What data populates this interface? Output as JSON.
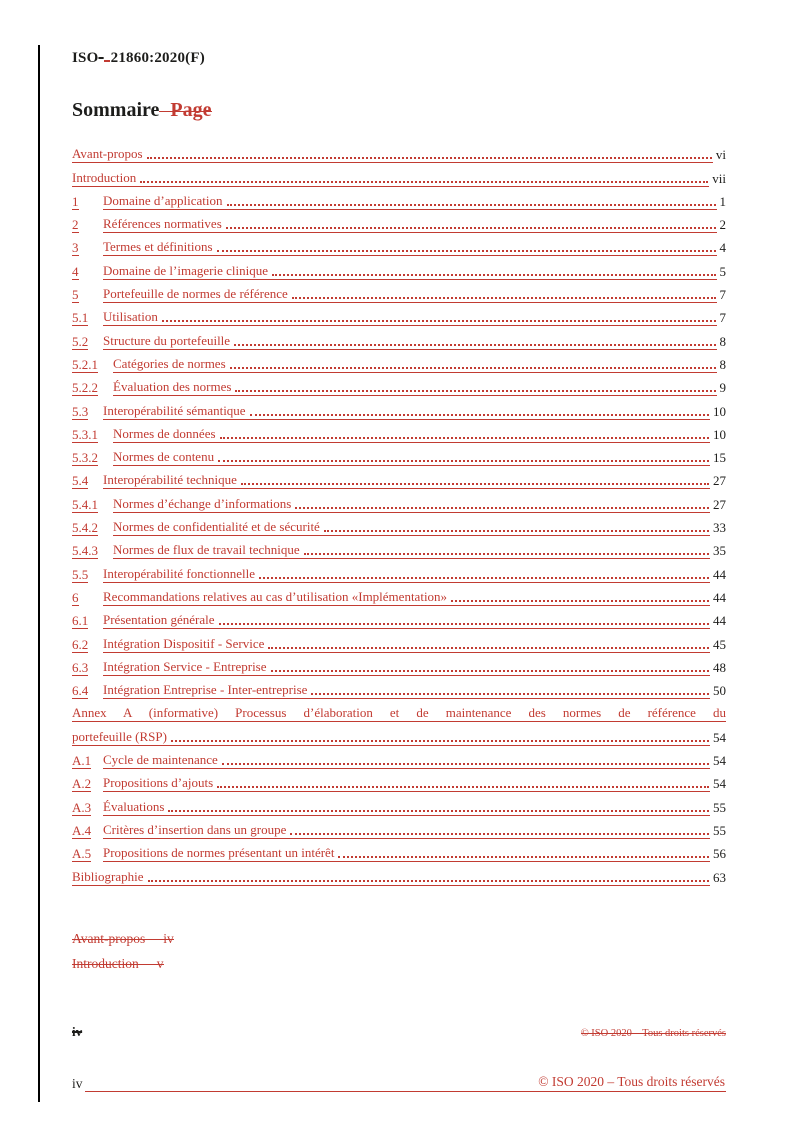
{
  "colors": {
    "insert_red": "#c23b32",
    "text_black": "#1d1d1b"
  },
  "header": {
    "prefix": "ISO",
    "deleted_hyphen": "-",
    "suffix": "21860:2020(F)"
  },
  "heading": {
    "title": "Sommaire",
    "deleted": "Page"
  },
  "toc": {
    "entries": [
      {
        "num": null,
        "title": "Avant-propos",
        "page": "vi",
        "level": 0
      },
      {
        "num": null,
        "title": "Introduction",
        "page": "vii",
        "level": 0
      },
      {
        "num": "1",
        "title": "Domaine d’application",
        "page": "1",
        "level": 1
      },
      {
        "num": "2",
        "title": "Références normatives",
        "page": "2",
        "level": 1
      },
      {
        "num": "3",
        "title": "Termes et définitions",
        "page": "4",
        "level": 1
      },
      {
        "num": "4",
        "title": "Domaine de l’imagerie clinique",
        "page": "5",
        "level": 1
      },
      {
        "num": "5",
        "title": "Portefeuille de normes de référence",
        "page": "7",
        "level": 1
      },
      {
        "num": "5.1",
        "title": "Utilisation",
        "page": "7",
        "level": 2
      },
      {
        "num": "5.2",
        "title": "Structure du portefeuille",
        "page": "8",
        "level": 2
      },
      {
        "num": "5.2.1",
        "title": "Catégories de normes",
        "page": "8",
        "level": 3
      },
      {
        "num": "5.2.2",
        "title": "Évaluation des normes",
        "page": "9",
        "level": 3
      },
      {
        "num": "5.3",
        "title": "Interopérabilité sémantique",
        "page": "10",
        "level": 2
      },
      {
        "num": "5.3.1",
        "title": "Normes de données",
        "page": "10",
        "level": 3
      },
      {
        "num": "5.3.2",
        "title": "Normes de contenu",
        "page": "15",
        "level": 3
      },
      {
        "num": "5.4",
        "title": "Interopérabilité technique",
        "page": "27",
        "level": 2
      },
      {
        "num": "5.4.1",
        "title": "Normes d’échange d’informations",
        "page": "27",
        "level": 3
      },
      {
        "num": "5.4.2",
        "title": "Normes de confidentialité et de sécurité",
        "page": "33",
        "level": 3
      },
      {
        "num": "5.4.3",
        "title": "Normes de flux de travail technique",
        "page": "35",
        "level": 3
      },
      {
        "num": "5.5",
        "title": "Interopérabilité fonctionnelle",
        "page": "44",
        "level": 2
      },
      {
        "num": "6",
        "title": "Recommandations relatives au cas d’utilisation «Implémentation»",
        "page": "44",
        "level": 1
      },
      {
        "num": "6.1",
        "title": "Présentation générale",
        "page": "44",
        "level": 2
      },
      {
        "num": "6.2",
        "title": "Intégration Dispositif - Service",
        "page": "45",
        "level": 2
      },
      {
        "num": "6.3",
        "title": "Intégration Service - Entreprise",
        "page": "48",
        "level": 2
      },
      {
        "num": "6.4",
        "title": "Intégration Entreprise - Inter-entreprise",
        "page": "50",
        "level": 2
      },
      {
        "annex": true,
        "line1": "Annex A (informative)  Processus d’élaboration et de maintenance des normes de référence du",
        "line2_title": "portefeuille (RSP)",
        "page": "54"
      },
      {
        "num": "A.1",
        "title": "Cycle de maintenance",
        "page": "54",
        "level": 2
      },
      {
        "num": "A.2",
        "title": "Propositions d’ajouts",
        "page": "54",
        "level": 2
      },
      {
        "num": "A.3",
        "title": "Évaluations",
        "page": "55",
        "level": 2
      },
      {
        "num": "A.4",
        "title": "Critères d’insertion dans un groupe",
        "page": "55",
        "level": 2
      },
      {
        "num": "A.5",
        "title": "Propositions de normes présentant un intérêt",
        "page": "56",
        "level": 2
      },
      {
        "num": null,
        "title": "Bibliographie",
        "page": "63",
        "level": 0
      }
    ]
  },
  "deleted_entries": [
    {
      "label": "Avant-propos",
      "page": "iv"
    },
    {
      "label": "Introduction",
      "page": "v"
    }
  ],
  "footer_old": {
    "page_num": "iv",
    "copyright": "© ISO 2020 – Tous droits réservés"
  },
  "footer_new": {
    "page_num": "iv",
    "copyright": "© ISO 2020 – Tous droits réservés"
  }
}
